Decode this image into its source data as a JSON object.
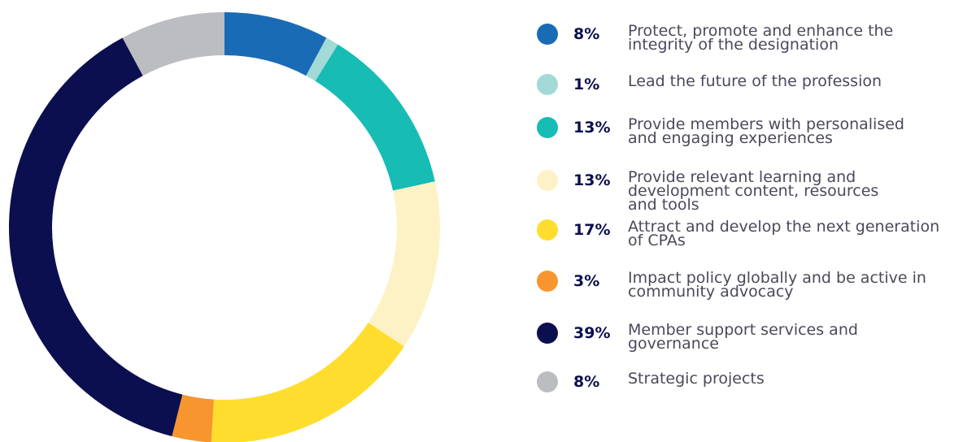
{
  "chart_data": {
    "type": "donut",
    "categories": [
      "Protect, promote and enhance the\nintegrity of the designation",
      "Lead the future of the profession",
      "Provide members with personalised\nand engaging experiences",
      "Provide relevant learning and\ndevelopment content, resources\nand tools",
      "Attract and develop the next generation\nof CPAs",
      "Impact policy globally and be active in\ncommunity advocacy",
      "Member support services and\ngovernance",
      "Strategic projects"
    ],
    "values": [
      8,
      1,
      13,
      13,
      17,
      3,
      39,
      8
    ],
    "value_labels": [
      "8%",
      "1%",
      "13%",
      "13%",
      "17%",
      "3%",
      "39%",
      "8%"
    ],
    "colors": [
      "#1a6bb5",
      "#a3d9d6",
      "#17bcb4",
      "#fdf2c5",
      "#fedd2e",
      "#f7952f",
      "#0b0f4f",
      "#bcbdc1"
    ],
    "legend": "right"
  }
}
